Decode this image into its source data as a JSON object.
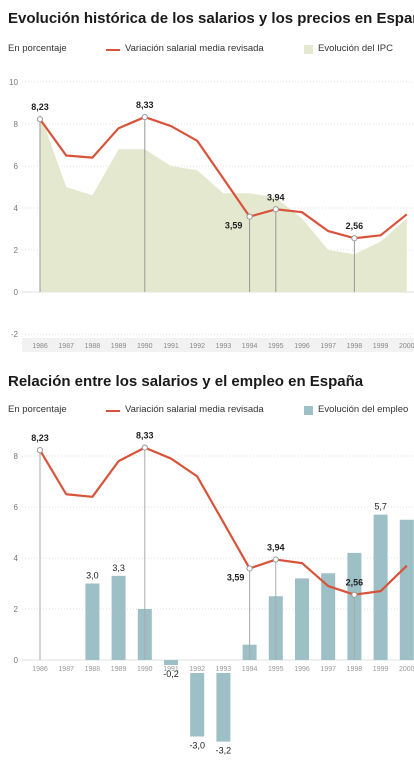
{
  "chart_data": [
    {
      "type": "line",
      "title": "Evolución histórica de los salarios y los precios en España",
      "unit_label": "En porcentaje",
      "legend": [
        "Variación salarial media revisada",
        "Evolución del IPC"
      ],
      "ylim": [
        -2,
        10
      ],
      "yticks": [
        "-2",
        "0",
        "2",
        "4",
        "6",
        "8",
        "10"
      ],
      "categories": [
        "1986",
        "1987",
        "1988",
        "1989",
        "1990",
        "1991",
        "1992",
        "1993",
        "1994",
        "1995",
        "1996",
        "1997",
        "1998",
        "1999",
        "2000"
      ],
      "series": [
        {
          "name": "Variación salarial media revisada",
          "kind": "line",
          "color": "#d9533a",
          "values": [
            8.23,
            6.5,
            6.4,
            7.8,
            8.33,
            7.9,
            7.2,
            5.4,
            3.59,
            3.94,
            3.8,
            2.9,
            2.56,
            2.7,
            3.7
          ]
        },
        {
          "name": "Evolución del IPC",
          "kind": "area",
          "color": "#e3e8cf",
          "values": [
            8.5,
            5.0,
            4.6,
            6.8,
            6.8,
            6.0,
            5.8,
            4.7,
            4.7,
            4.5,
            3.5,
            2.0,
            1.8,
            2.4,
            3.5
          ]
        }
      ],
      "labels": [
        {
          "category": "1986",
          "value": 8.23,
          "text": "8,23"
        },
        {
          "category": "1990",
          "value": 8.33,
          "text": "8,33"
        },
        {
          "category": "1994",
          "value": 3.59,
          "text": "3,59"
        },
        {
          "category": "1995",
          "value": 3.94,
          "text": "3,94"
        },
        {
          "category": "1998",
          "value": 2.56,
          "text": "2,56"
        }
      ]
    },
    {
      "type": "bar",
      "title": "Relación entre los salarios y el empleo en España",
      "unit_label": "En porcentaje",
      "legend": [
        "Variación salarial media revisada",
        "Evolución del empleo"
      ],
      "ylim": [
        -4,
        8
      ],
      "yticks": [
        "0",
        "2",
        "4",
        "6",
        "8"
      ],
      "categories": [
        "1986",
        "1987",
        "1988",
        "1989",
        "1990",
        "1991",
        "1992",
        "1993",
        "1994",
        "1995",
        "1996",
        "1997",
        "1998",
        "1999",
        "2000"
      ],
      "series": [
        {
          "name": "Variación salarial media revisada",
          "kind": "line",
          "color": "#d9533a",
          "values": [
            8.23,
            6.5,
            6.4,
            7.8,
            8.33,
            7.9,
            7.2,
            5.4,
            3.59,
            3.94,
            3.8,
            2.9,
            2.56,
            2.7,
            3.7
          ]
        },
        {
          "name": "Evolución del empleo",
          "kind": "bar",
          "color": "#9dbfc6",
          "values": [
            null,
            null,
            3.0,
            3.3,
            2.0,
            -0.2,
            -3.0,
            -3.2,
            0.6,
            2.5,
            3.2,
            3.4,
            4.2,
            5.7,
            5.5
          ]
        }
      ],
      "labels": [
        {
          "category": "1986",
          "value": 8.23,
          "text": "8,23",
          "pos": "above"
        },
        {
          "category": "1990",
          "value": 8.33,
          "text": "8,33",
          "pos": "above"
        },
        {
          "category": "1994",
          "value": 3.59,
          "text": "3,59",
          "pos": "left"
        },
        {
          "category": "1995",
          "value": 3.94,
          "text": "3,94",
          "pos": "above"
        },
        {
          "category": "1998",
          "value": 2.56,
          "text": "2,56",
          "pos": "above"
        }
      ],
      "bar_labels": [
        {
          "category": "1988",
          "value": 3.0,
          "text": "3,0"
        },
        {
          "category": "1989",
          "value": 3.3,
          "text": "3,3"
        },
        {
          "category": "1991",
          "value": -0.2,
          "text": "-0,2"
        },
        {
          "category": "1992",
          "value": -3.0,
          "text": "-3,0"
        },
        {
          "category": "1993",
          "value": -3.2,
          "text": "-3,2"
        },
        {
          "category": "1999",
          "value": 5.7,
          "text": "5,7"
        }
      ]
    }
  ]
}
